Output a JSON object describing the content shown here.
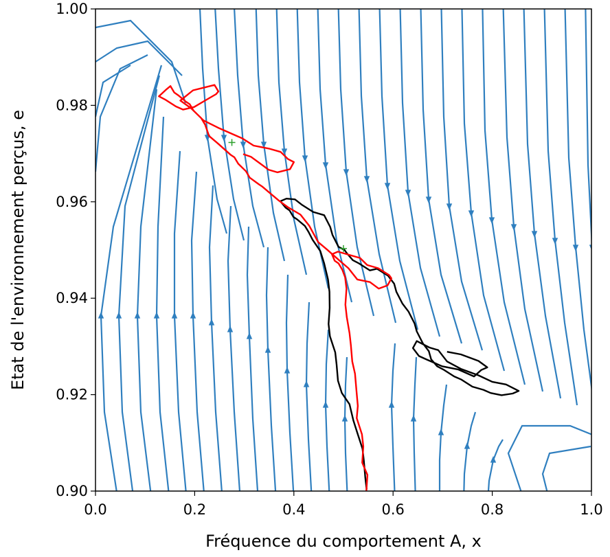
{
  "chart_data": {
    "type": "line",
    "subtype": "phase-portrait-streamplot",
    "title": "",
    "xlabel": "Fréquence du comportement A, x",
    "ylabel": "Etat de l'environnement perçus, e",
    "xlim": [
      0.0,
      1.0
    ],
    "ylim": [
      0.9,
      1.0
    ],
    "x_ticks": [
      0.0,
      0.2,
      0.4,
      0.6,
      0.8,
      1.0
    ],
    "y_ticks": [
      0.9,
      0.92,
      0.94,
      0.96,
      0.98,
      1.0
    ],
    "x_tick_labels": [
      "0.0",
      "0.2",
      "0.4",
      "0.6",
      "0.8",
      "1.0"
    ],
    "y_tick_labels": [
      "0.90",
      "0.92",
      "0.94",
      "0.96",
      "0.98",
      "1.00"
    ],
    "grid": false,
    "colors": {
      "streamlines": "#2f7fbf",
      "trajectory_1": "#000000",
      "trajectory_2": "#ff0000",
      "equilibria": "#2ca02c"
    },
    "equilibria": [
      {
        "x": 0.275,
        "y": 0.9723
      },
      {
        "x": 0.5,
        "y": 0.9503
      }
    ],
    "series": [
      {
        "color": "#000000",
        "x": [
          0.55,
          0.545,
          0.54,
          0.535,
          0.53,
          0.52,
          0.51,
          0.5,
          0.49,
          0.485,
          0.48,
          0.475,
          0.47,
          0.47,
          0.475,
          0.47,
          0.46,
          0.45,
          0.44,
          0.43,
          0.42,
          0.41,
          0.4,
          0.39,
          0.38,
          0.375,
          0.385,
          0.4,
          0.42,
          0.44,
          0.46,
          0.47,
          0.48,
          0.49,
          0.5,
          0.51,
          0.52,
          0.53,
          0.55,
          0.57,
          0.59,
          0.6,
          0.61,
          0.62,
          0.63,
          0.64,
          0.65,
          0.66,
          0.67,
          0.68,
          0.69,
          0.7,
          0.72,
          0.74,
          0.76,
          0.78,
          0.8,
          0.82,
          0.84,
          0.85,
          0.83,
          0.8,
          0.77,
          0.74,
          0.71,
          0.69,
          0.67,
          0.65,
          0.64,
          0.65,
          0.67,
          0.7,
          0.73,
          0.76,
          0.78,
          0.79,
          0.77,
          0.74,
          0.71
        ],
        "y": [
          0.9,
          0.903,
          0.906,
          0.909,
          0.912,
          0.915,
          0.918,
          0.92,
          0.923,
          0.926,
          0.929,
          0.932,
          0.935,
          0.938,
          0.941,
          0.944,
          0.947,
          0.95,
          0.952,
          0.954,
          0.955,
          0.956,
          0.957,
          0.958,
          0.959,
          0.96,
          0.961,
          0.9605,
          0.959,
          0.958,
          0.957,
          0.955,
          0.953,
          0.951,
          0.95,
          0.949,
          0.948,
          0.947,
          0.946,
          0.946,
          0.945,
          0.943,
          0.941,
          0.939,
          0.937,
          0.935,
          0.933,
          0.931,
          0.929,
          0.927,
          0.926,
          0.925,
          0.924,
          0.923,
          0.922,
          0.921,
          0.92,
          0.92,
          0.92,
          0.921,
          0.922,
          0.923,
          0.924,
          0.925,
          0.927,
          0.929,
          0.93,
          0.931,
          0.93,
          0.928,
          0.927,
          0.926,
          0.925,
          0.924,
          0.925,
          0.926,
          0.927,
          0.928,
          0.929
        ]
      },
      {
        "color": "#ff0000",
        "x": [
          0.545,
          0.545,
          0.54,
          0.54,
          0.535,
          0.53,
          0.53,
          0.525,
          0.52,
          0.52,
          0.515,
          0.51,
          0.51,
          0.505,
          0.505,
          0.5,
          0.5,
          0.49,
          0.48,
          0.48,
          0.49,
          0.51,
          0.53,
          0.55,
          0.57,
          0.59,
          0.6,
          0.59,
          0.57,
          0.55,
          0.53,
          0.51,
          0.49,
          0.47,
          0.45,
          0.43,
          0.41,
          0.39,
          0.37,
          0.35,
          0.34,
          0.33,
          0.31,
          0.3,
          0.29,
          0.28,
          0.27,
          0.25,
          0.23,
          0.22,
          0.21,
          0.2,
          0.19,
          0.18,
          0.17,
          0.16,
          0.15,
          0.14,
          0.13,
          0.14,
          0.16,
          0.18,
          0.2,
          0.22,
          0.24,
          0.25,
          0.24,
          0.22,
          0.2,
          0.18,
          0.17,
          0.19,
          0.22,
          0.25,
          0.28,
          0.3,
          0.32,
          0.35,
          0.37,
          0.39,
          0.4,
          0.39,
          0.37,
          0.35,
          0.33,
          0.31,
          0.3
        ],
        "y": [
          0.9,
          0.903,
          0.906,
          0.909,
          0.912,
          0.915,
          0.918,
          0.921,
          0.924,
          0.927,
          0.93,
          0.933,
          0.936,
          0.939,
          0.942,
          0.944,
          0.946,
          0.947,
          0.948,
          0.949,
          0.95,
          0.949,
          0.948,
          0.947,
          0.946,
          0.945,
          0.944,
          0.943,
          0.942,
          0.943,
          0.944,
          0.946,
          0.948,
          0.95,
          0.952,
          0.955,
          0.957,
          0.959,
          0.96,
          0.962,
          0.963,
          0.964,
          0.965,
          0.966,
          0.968,
          0.969,
          0.97,
          0.972,
          0.974,
          0.976,
          0.977,
          0.979,
          0.98,
          0.981,
          0.982,
          0.983,
          0.984,
          0.983,
          0.982,
          0.981,
          0.98,
          0.979,
          0.98,
          0.981,
          0.982,
          0.983,
          0.984,
          0.984,
          0.983,
          0.982,
          0.981,
          0.979,
          0.977,
          0.975,
          0.974,
          0.973,
          0.972,
          0.971,
          0.97,
          0.969,
          0.968,
          0.967,
          0.966,
          0.967,
          0.968,
          0.969,
          0.97
        ]
      }
    ]
  }
}
